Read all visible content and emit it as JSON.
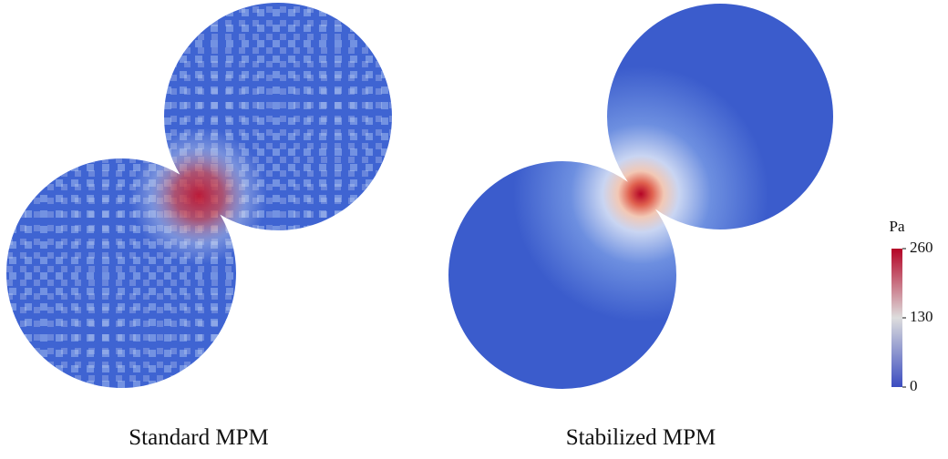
{
  "panels": [
    {
      "caption": "Standard MPM"
    },
    {
      "caption": "Stabilized MPM"
    }
  ],
  "colorbar": {
    "label": "Pa",
    "range": [
      0,
      260
    ],
    "ticks": [
      0,
      130,
      260
    ]
  }
}
